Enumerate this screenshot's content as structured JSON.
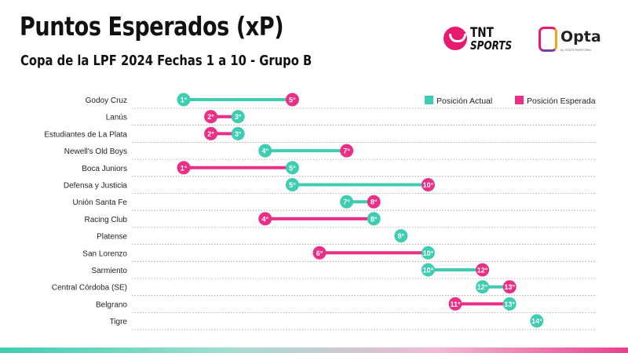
{
  "header": {
    "title": "Puntos Esperados (xP)",
    "subtitle": "Copa de la LPF 2024 Fechas 1 a 10 - Grupo B"
  },
  "logos": {
    "tnt_line1": "TNT",
    "tnt_line2": "SPORTS",
    "opta_name": "Opta",
    "opta_sub": "by STATS PERFORM"
  },
  "colors": {
    "actual": "#3ecdb1",
    "expected": "#ea2f86",
    "text": "#222222",
    "gridline": "#999999"
  },
  "chart_data": {
    "type": "dumbbell",
    "title": "Puntos Esperados (xP)",
    "subtitle": "Copa de la LPF 2024 Fechas 1 a 10 - Grupo B",
    "legend": {
      "placement": "top-right",
      "entries": [
        "Posición Actual",
        "Posición Esperada"
      ]
    },
    "xlim": [
      1,
      14
    ],
    "grid": true,
    "series_names": {
      "actual": "Posición Actual",
      "expected": "Posición Esperada"
    },
    "teams": [
      {
        "team": "Godoy Cruz",
        "actual": 1,
        "expected": 5,
        "actual_label": "1°",
        "expected_label": "5°"
      },
      {
        "team": "Lanús",
        "actual": 3,
        "expected": 2,
        "actual_label": "3°",
        "expected_label": "2°"
      },
      {
        "team": "Estudiantes de La Plata",
        "actual": 3,
        "expected": 2,
        "actual_label": "3°",
        "expected_label": "2°"
      },
      {
        "team": "Newell's Old Boys",
        "actual": 4,
        "expected": 7,
        "actual_label": "4°",
        "expected_label": "7°"
      },
      {
        "team": "Boca Juniors",
        "actual": 5,
        "expected": 1,
        "actual_label": "5°",
        "expected_label": "1°"
      },
      {
        "team": "Defensa y Justicia",
        "actual": 5,
        "expected": 10,
        "actual_label": "5°",
        "expected_label": "10°"
      },
      {
        "team": "Unión Santa Fe",
        "actual": 7,
        "expected": 8,
        "actual_label": "7°",
        "expected_label": "8°"
      },
      {
        "team": "Racing Club",
        "actual": 8,
        "expected": 4,
        "actual_label": "8°",
        "expected_label": "4°"
      },
      {
        "team": "Platense",
        "actual": 9,
        "expected": 9,
        "actual_label": "9°",
        "expected_label": "9°"
      },
      {
        "team": "San Lorenzo",
        "actual": 10,
        "expected": 6,
        "actual_label": "10°",
        "expected_label": "6°"
      },
      {
        "team": "Sarmiento",
        "actual": 10,
        "expected": 12,
        "actual_label": "10°",
        "expected_label": "12°"
      },
      {
        "team": "Central Córdoba (SE)",
        "actual": 12,
        "expected": 13,
        "actual_label": "12°",
        "expected_label": "13°"
      },
      {
        "team": "Belgrano",
        "actual": 13,
        "expected": 11,
        "actual_label": "13°",
        "expected_label": "11°"
      },
      {
        "team": "Tigre",
        "actual": 14,
        "expected": 14,
        "actual_label": "14°",
        "expected_label": "14°"
      }
    ]
  }
}
